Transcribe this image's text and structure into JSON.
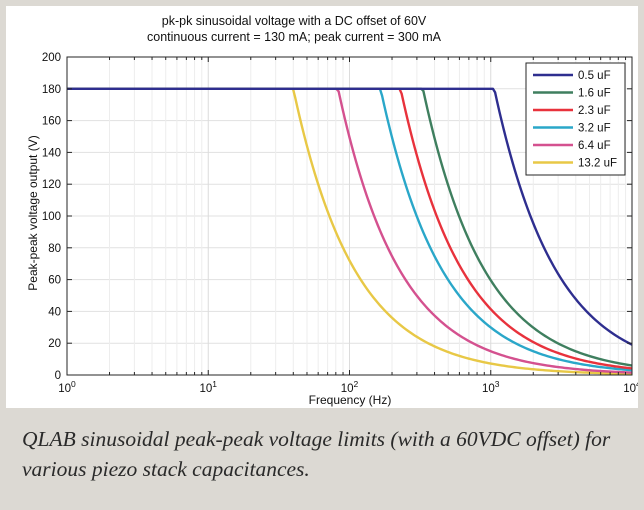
{
  "caption": "QLAB sinusoidal peak-peak voltage limits (with a 60VDC offset) for various piezo stack capacitances.",
  "chart_data": {
    "type": "line",
    "title": "pk-pk sinusoidal voltage with a DC offset of 60V",
    "subtitle": "continuous current = 130 mA; peak current = 300 mA",
    "xlabel": "Frequency (Hz)",
    "ylabel": "Peak-peak voltage output (V)",
    "xscale": "log",
    "xlim": [
      1,
      10000
    ],
    "ylim": [
      0,
      200
    ],
    "grid": true,
    "legend_position": "top-right",
    "x_ticks": [
      {
        "base": "10",
        "exp": "0"
      },
      {
        "base": "10",
        "exp": "1"
      },
      {
        "base": "10",
        "exp": "2"
      },
      {
        "base": "10",
        "exp": "3"
      },
      {
        "base": "10",
        "exp": "4"
      }
    ],
    "y_ticks": [
      "0",
      "20",
      "40",
      "60",
      "80",
      "100",
      "120",
      "140",
      "160",
      "180",
      "200"
    ],
    "series": [
      {
        "name": "0.5 uF",
        "color": "#2e2e8f",
        "plateau": 180,
        "knee_hz": 1060
      },
      {
        "name": "1.6 uF",
        "color": "#3f7f5f",
        "plateau": 180,
        "knee_hz": 331
      },
      {
        "name": "2.3 uF",
        "color": "#e8323c",
        "plateau": 180,
        "knee_hz": 230
      },
      {
        "name": "3.2 uF",
        "color": "#2aa7c9",
        "plateau": 180,
        "knee_hz": 166
      },
      {
        "name": "6.4 uF",
        "color": "#d4518f",
        "plateau": 180,
        "knee_hz": 83
      },
      {
        "name": "13.2 uF",
        "color": "#e8c846",
        "plateau": 180,
        "knee_hz": 40
      }
    ]
  }
}
